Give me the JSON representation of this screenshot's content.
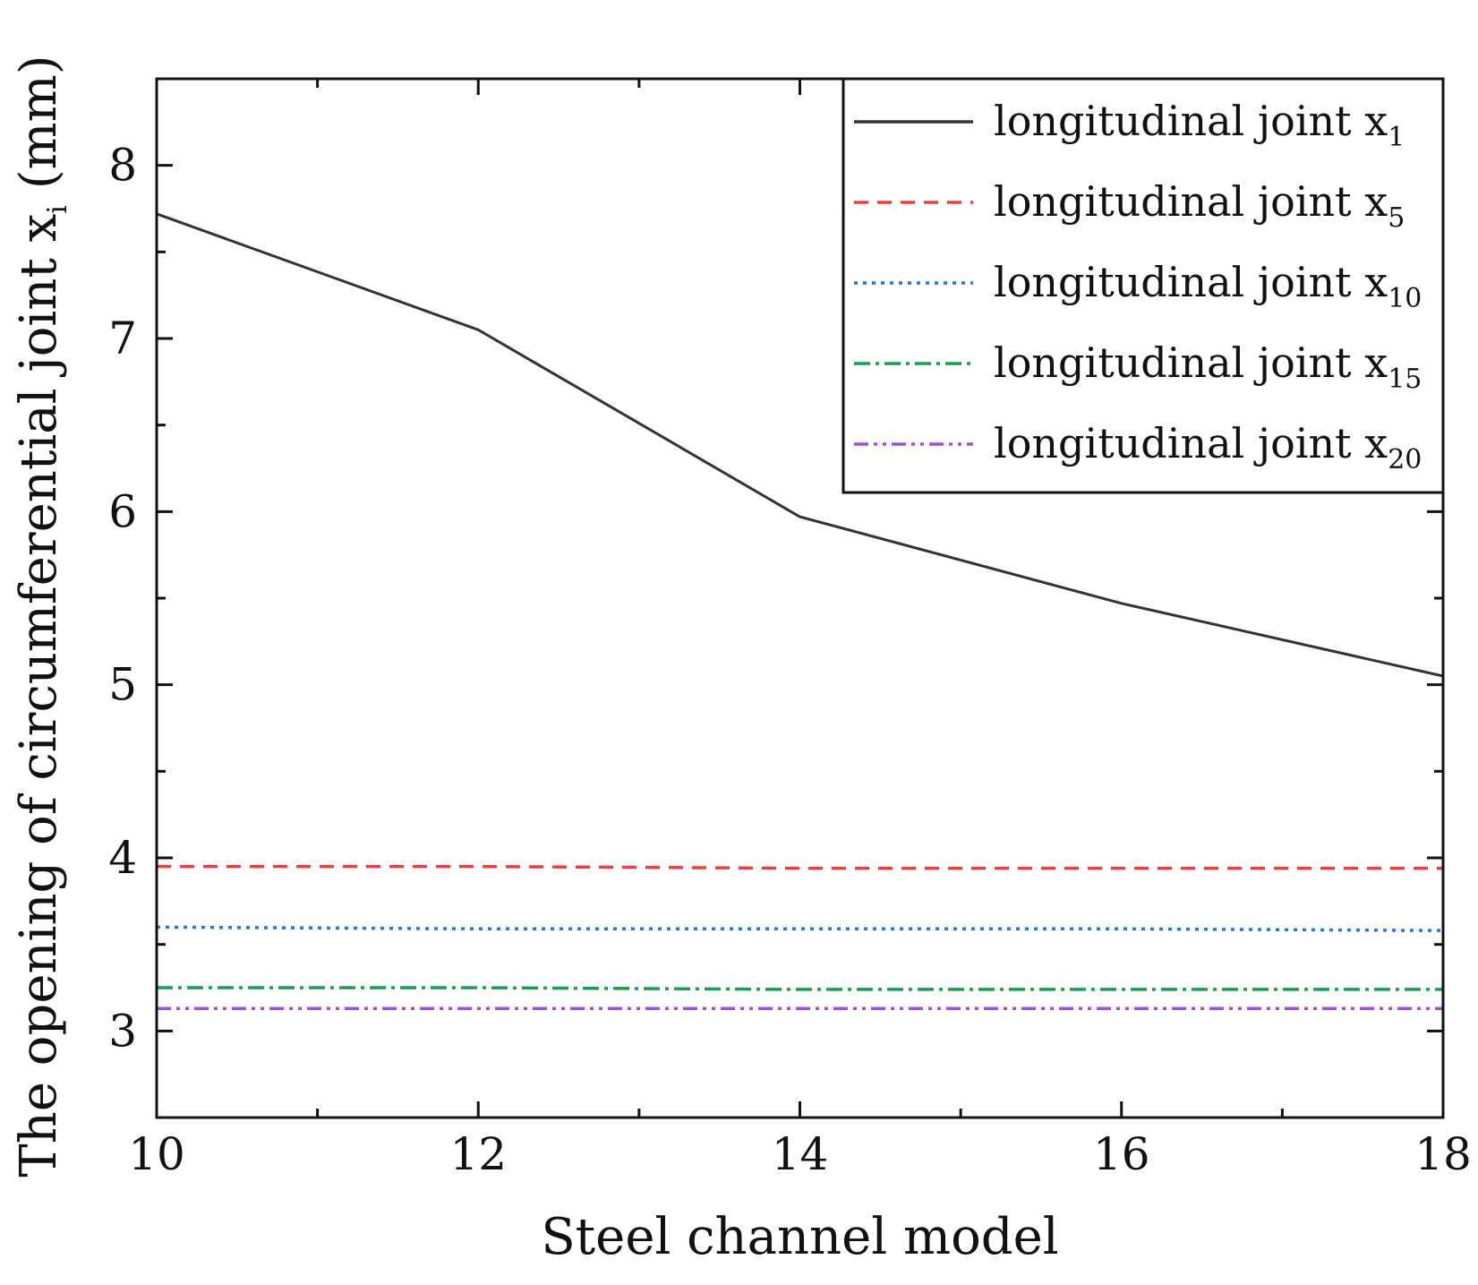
{
  "chart_data": {
    "type": "line",
    "title": "",
    "xlabel": "Steel channel model",
    "ylabel": {
      "prefix": "The opening of circumferential joint x",
      "sub": "i",
      "suffix": " (mm)"
    },
    "xlim": [
      10,
      18
    ],
    "ylim": [
      2.5,
      8.5
    ],
    "xticks": [
      10,
      12,
      14,
      16,
      18
    ],
    "yticks": [
      3,
      4,
      5,
      6,
      7,
      8
    ],
    "x": [
      10,
      12,
      14,
      16,
      18
    ],
    "legend_position": "top-right",
    "series": [
      {
        "name": "longitudinal joint x",
        "sub": "1",
        "color": "#333333",
        "dash": "solid",
        "values": [
          7.72,
          7.05,
          5.97,
          5.47,
          5.05
        ]
      },
      {
        "name": "longitudinal joint x",
        "sub": "5",
        "color": "#f03c3c",
        "dash": "dashed",
        "values": [
          3.95,
          3.95,
          3.94,
          3.94,
          3.94
        ]
      },
      {
        "name": "longitudinal joint x",
        "sub": "10",
        "color": "#1e78e6",
        "dash": "dotted",
        "values": [
          3.6,
          3.59,
          3.59,
          3.59,
          3.58
        ]
      },
      {
        "name": "longitudinal joint x",
        "sub": "15",
        "color": "#14a050",
        "dash": "dashdot",
        "values": [
          3.25,
          3.25,
          3.24,
          3.24,
          3.24
        ]
      },
      {
        "name": "longitudinal joint x",
        "sub": "20",
        "color": "#a050e0",
        "dash": "dashdotdot",
        "values": [
          3.13,
          3.13,
          3.13,
          3.13,
          3.13
        ]
      }
    ]
  }
}
